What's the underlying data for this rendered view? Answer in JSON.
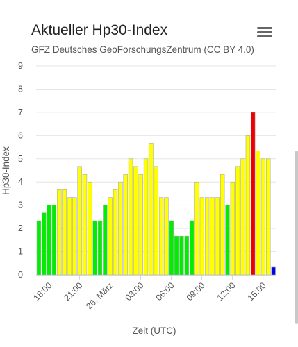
{
  "header": {
    "title": "Aktueller Hp30-Index",
    "subtitle": "GFZ Deutsches GeoForschungsZentrum (CC BY 4.0)",
    "menu_icon": "hamburger-icon"
  },
  "chart_data": {
    "type": "bar",
    "title": "Aktueller Hp30-Index",
    "subtitle": "GFZ Deutsches GeoForschungsZentrum (CC BY 4.0)",
    "xlabel": "Zeit (UTC)",
    "ylabel": "Hp30-Index",
    "ylim": [
      0,
      9
    ],
    "yticks": [
      "0",
      "1",
      "2",
      "3",
      "4",
      "5",
      "6",
      "7",
      "8",
      "9"
    ],
    "xticks": [
      {
        "label": "18:00",
        "bar": 2.5
      },
      {
        "label": "21:00",
        "bar": 8.5
      },
      {
        "label": "26. März",
        "bar": 14.5
      },
      {
        "label": "03:00",
        "bar": 20.5
      },
      {
        "label": "06:00",
        "bar": 26.5
      },
      {
        "label": "09:00",
        "bar": 32.5
      },
      {
        "label": "12:00",
        "bar": 38.5
      },
      {
        "label": "15:00",
        "bar": 44.5
      }
    ],
    "grid": true,
    "values": [
      2.33,
      2.67,
      3,
      3,
      3.67,
      3.67,
      3.33,
      3.33,
      4.67,
      4.33,
      4,
      2.33,
      2.33,
      3,
      3.33,
      3.67,
      4,
      4.33,
      5,
      4.67,
      4.33,
      5,
      5.67,
      4.67,
      3.33,
      3.33,
      2.33,
      1.67,
      1.67,
      1.67,
      2.33,
      4,
      3.33,
      3.33,
      3.33,
      3.33,
      4.33,
      3,
      4,
      4.67,
      5,
      6,
      7,
      5.33,
      5,
      5,
      0.33
    ],
    "colors": {
      "green": "#00ee00",
      "yellow": "#ffff00",
      "red": "#ee0000",
      "blue": "#0000ee",
      "bar_border": "#aaaaaa"
    }
  }
}
